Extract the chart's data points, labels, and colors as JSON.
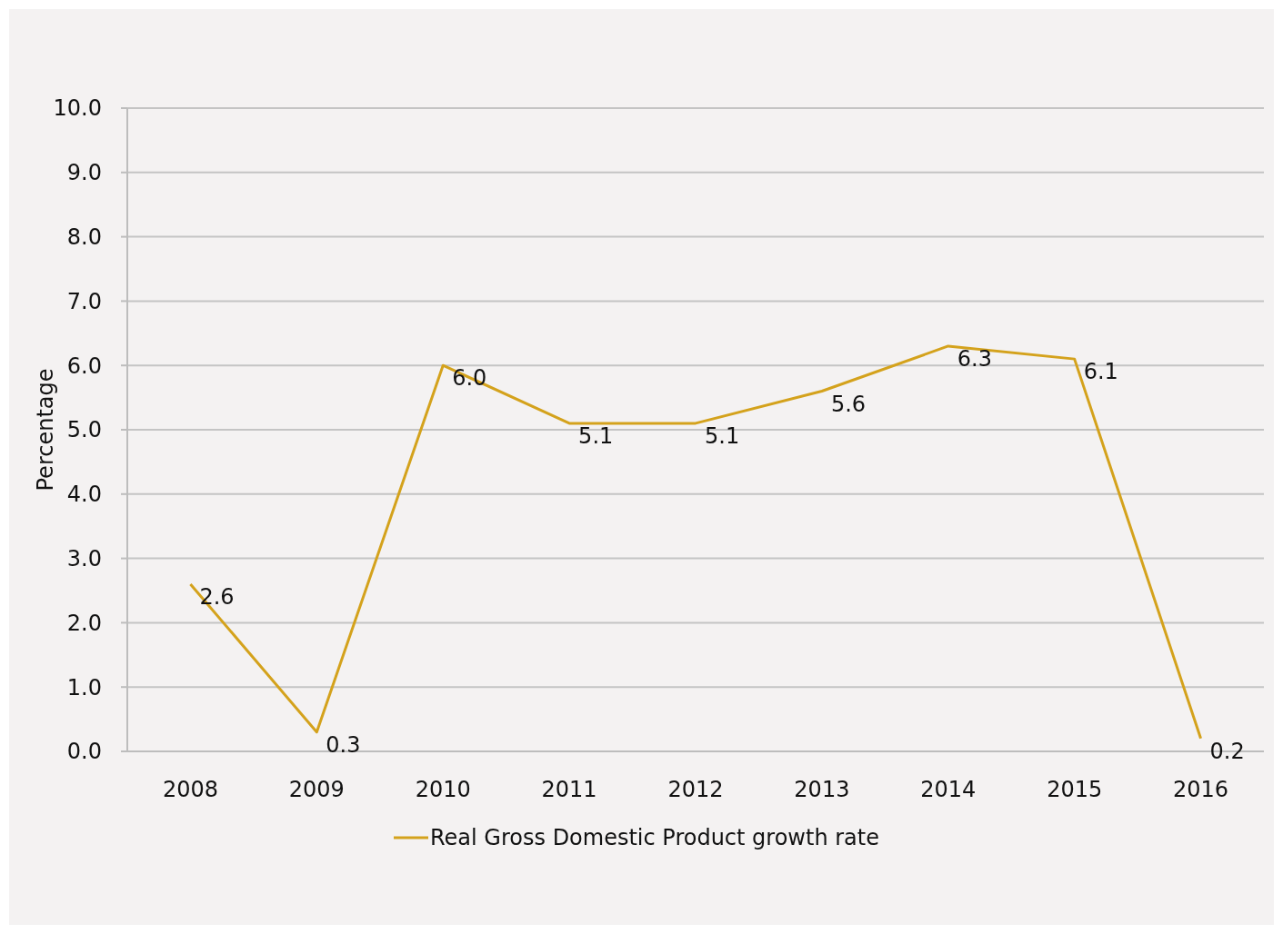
{
  "chart_data": {
    "type": "line",
    "ylabel": "Percentage",
    "categories": [
      "2008",
      "2009",
      "2010",
      "2011",
      "2012",
      "2013",
      "2014",
      "2015",
      "2016"
    ],
    "series": [
      {
        "name": "Real Gross Domestic Product growth rate",
        "color": "#d4a21c",
        "values": [
          2.6,
          0.3,
          6.0,
          5.1,
          5.1,
          5.6,
          6.3,
          6.1,
          0.2
        ],
        "value_labels": [
          "2.6",
          "0.3",
          "6.0",
          "5.1",
          "5.1",
          "5.6",
          "6.3",
          "6.1",
          "0.2"
        ]
      }
    ],
    "ylim": [
      0,
      10
    ],
    "yticks": [
      {
        "value": 0,
        "label": "0.0"
      },
      {
        "value": 1,
        "label": "1.0"
      },
      {
        "value": 2,
        "label": "2.0"
      },
      {
        "value": 3,
        "label": "3.0"
      },
      {
        "value": 4,
        "label": "4.0"
      },
      {
        "value": 5,
        "label": "5.0"
      },
      {
        "value": 6,
        "label": "6.0"
      },
      {
        "value": 7,
        "label": "7.0"
      },
      {
        "value": 8,
        "label": "8.0"
      },
      {
        "value": 9,
        "label": "9.0"
      },
      {
        "value": 10,
        "label": "10.0"
      }
    ],
    "grid": "y",
    "legend": "bottom",
    "marker": "none",
    "line_style": "solid"
  }
}
